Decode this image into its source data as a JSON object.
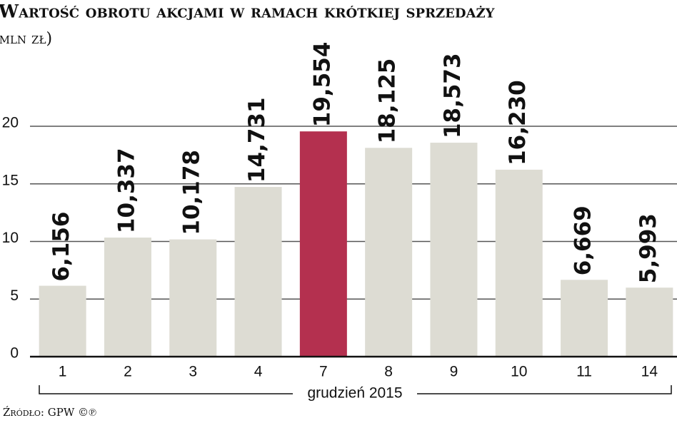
{
  "chart_data": {
    "type": "bar",
    "title": "Wartość obrotu akcjami w ramach krótkiej sprzedaży",
    "subtitle": "(mln zł)",
    "x_label": "grudzień 2015",
    "source": "Źródło: GPW ©℗",
    "categories": [
      "1",
      "2",
      "3",
      "4",
      "7",
      "8",
      "9",
      "10",
      "11",
      "14"
    ],
    "values": [
      6.156,
      10.337,
      10.178,
      14.731,
      19.554,
      18.125,
      18.573,
      16.23,
      6.669,
      5.993
    ],
    "value_labels": [
      "6,156",
      "10,337",
      "10,178",
      "14,731",
      "19,554",
      "18,125",
      "18,573",
      "16,230",
      "6,669",
      "5,993"
    ],
    "colors": [
      "#dddcd3",
      "#dddcd3",
      "#dddcd3",
      "#dddcd3",
      "#b4304f",
      "#dddcd3",
      "#dddcd3",
      "#dddcd3",
      "#dddcd3",
      "#dddcd3"
    ],
    "ylim": [
      0,
      20
    ],
    "yticks": [
      0,
      5,
      10,
      15,
      20
    ],
    "grid": true
  }
}
